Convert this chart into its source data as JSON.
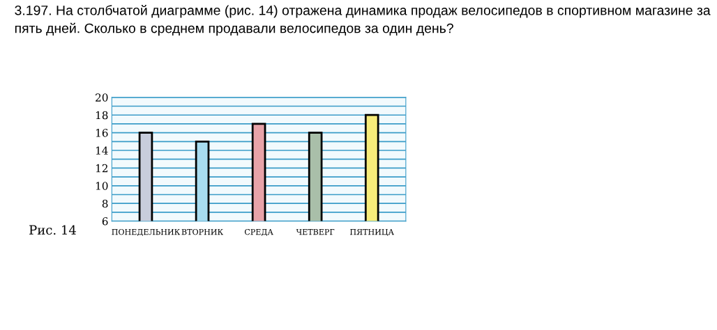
{
  "chart_data": {
    "type": "bar",
    "title": "3.197. На столбчатой диаграмме (рис. 14) отражена динамика продаж велосипедов в спортивном магазине за пять дней. Сколько в среднем продавали велосипедов за один день?",
    "categories": [
      "ПОНЕДЕЛЬНИК",
      "ВТОРНИК",
      "СРЕДА",
      "ЧЕТВЕРГ",
      "ПЯТНИЦА"
    ],
    "values": [
      16,
      15,
      17,
      16,
      18
    ],
    "colors": [
      "#c8cddc",
      "#a8dcef",
      "#e8a3a8",
      "#a9bfa9",
      "#f7ec7a"
    ],
    "ylim": [
      6,
      20
    ],
    "yticks": [
      6,
      {
        "value": 7,
        "label": null
      },
      8,
      {
        "value": 9,
        "label": null
      },
      10,
      {
        "value": 11,
        "label": null
      },
      12,
      {
        "value": 13,
        "label": null
      },
      14,
      {
        "value": 15,
        "label": null
      },
      16,
      {
        "value": 17,
        "label": null
      },
      18,
      {
        "value": 19,
        "label": null
      },
      20
    ],
    "grid": "y",
    "annotations": [
      "Рис. 14"
    ]
  }
}
